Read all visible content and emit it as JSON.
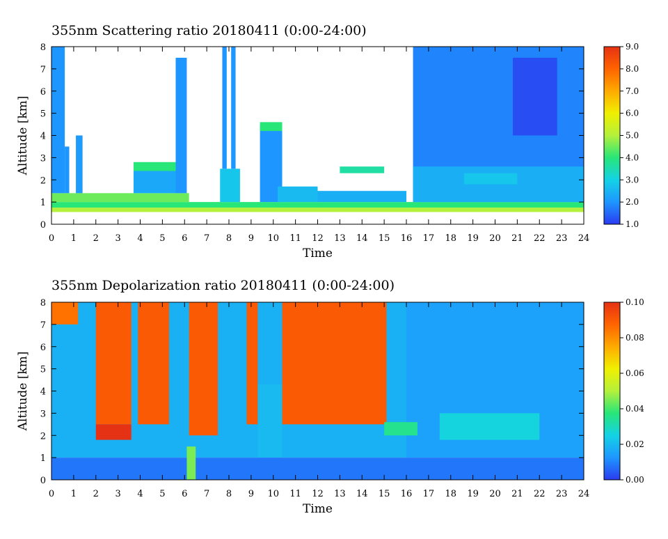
{
  "chart_data": [
    {
      "type": "heatmap",
      "title": "355nm Scattering ratio   20180411 (0:00-24:00)",
      "xlabel": "Time",
      "ylabel": "Altitude [km]",
      "xlim": [
        0,
        24
      ],
      "ylim": [
        0,
        8
      ],
      "x_ticks": [
        "0",
        "1",
        "2",
        "3",
        "4",
        "5",
        "6",
        "7",
        "8",
        "9",
        "10",
        "11",
        "12",
        "13",
        "14",
        "15",
        "16",
        "17",
        "18",
        "19",
        "20",
        "21",
        "22",
        "23",
        "24"
      ],
      "y_ticks": [
        "0",
        "1",
        "2",
        "3",
        "4",
        "5",
        "6",
        "7",
        "8"
      ],
      "colorbar": {
        "range": [
          1.0,
          9.0
        ],
        "ticks": [
          "1.0",
          "2.0",
          "3.0",
          "4.0",
          "5.0",
          "6.0",
          "7.0",
          "8.0",
          "9.0"
        ],
        "colors": [
          "#2a3cf0",
          "#1e96ff",
          "#14d2e6",
          "#28e678",
          "#b4f03c",
          "#f0f000",
          "#ffaa00",
          "#ff6400",
          "#e63214"
        ]
      },
      "regions": [
        {
          "x": [
            0.0,
            24.0
          ],
          "y": [
            0.55,
            0.75
          ],
          "value": 5.0
        },
        {
          "x": [
            0.0,
            24.0
          ],
          "y": [
            0.75,
            1.0
          ],
          "value": 4.0
        },
        {
          "x": [
            0.0,
            6.2
          ],
          "y": [
            1.0,
            1.4
          ],
          "value": 4.5
        },
        {
          "x": [
            0.0,
            0.6
          ],
          "y": [
            1.4,
            8.0
          ],
          "value": 2.0
        },
        {
          "x": [
            0.6,
            0.8
          ],
          "y": [
            1.4,
            3.5
          ],
          "value": 2.0
        },
        {
          "x": [
            1.1,
            1.4
          ],
          "y": [
            1.4,
            4.0
          ],
          "value": 2.1
        },
        {
          "x": [
            3.7,
            5.6
          ],
          "y": [
            1.4,
            2.4
          ],
          "value": 2.3
        },
        {
          "x": [
            3.7,
            5.6
          ],
          "y": [
            2.4,
            2.8
          ],
          "value": 4.0
        },
        {
          "x": [
            5.6,
            6.1
          ],
          "y": [
            1.4,
            7.5
          ],
          "value": 2.0
        },
        {
          "x": [
            7.6,
            8.5
          ],
          "y": [
            1.0,
            2.5
          ],
          "value": 2.8
        },
        {
          "x": [
            7.7,
            7.9
          ],
          "y": [
            2.5,
            8.0
          ],
          "value": 2.0
        },
        {
          "x": [
            8.1,
            8.3
          ],
          "y": [
            2.5,
            8.0
          ],
          "value": 2.0
        },
        {
          "x": [
            9.4,
            10.4
          ],
          "y": [
            1.0,
            4.5
          ],
          "value": 2.0
        },
        {
          "x": [
            9.4,
            10.4
          ],
          "y": [
            4.2,
            4.6
          ],
          "value": 4.0
        },
        {
          "x": [
            10.2,
            12.0
          ],
          "y": [
            1.0,
            1.7
          ],
          "value": 2.6
        },
        {
          "x": [
            12.0,
            16.0
          ],
          "y": [
            1.0,
            1.5
          ],
          "value": 2.4
        },
        {
          "x": [
            13.0,
            15.0
          ],
          "y": [
            2.3,
            2.6
          ],
          "value": 3.6
        },
        {
          "x": [
            16.3,
            24.0
          ],
          "y": [
            1.0,
            8.0
          ],
          "value": 1.8
        },
        {
          "x": [
            16.3,
            24.0
          ],
          "y": [
            1.0,
            2.6
          ],
          "value": 2.4
        },
        {
          "x": [
            18.6,
            21.0
          ],
          "y": [
            1.8,
            2.3
          ],
          "value": 2.8
        },
        {
          "x": [
            20.8,
            22.8
          ],
          "y": [
            4.0,
            7.5
          ],
          "value": 1.2
        }
      ]
    },
    {
      "type": "heatmap",
      "title": "355nm Depolarization ratio   20180411 (0:00-24:00)",
      "xlabel": "Time",
      "ylabel": "Altitude [km]",
      "xlim": [
        0,
        24
      ],
      "ylim": [
        0,
        8
      ],
      "x_ticks": [
        "0",
        "1",
        "2",
        "3",
        "4",
        "5",
        "6",
        "7",
        "8",
        "9",
        "10",
        "11",
        "12",
        "13",
        "14",
        "15",
        "16",
        "17",
        "18",
        "19",
        "20",
        "21",
        "22",
        "23",
        "24"
      ],
      "y_ticks": [
        "0",
        "1",
        "2",
        "3",
        "4",
        "5",
        "6",
        "7",
        "8"
      ],
      "colorbar": {
        "range": [
          0.0,
          0.1
        ],
        "ticks": [
          "0.00",
          "0.02",
          "0.04",
          "0.06",
          "0.08",
          "0.10"
        ],
        "colors": [
          "#2a3cf0",
          "#1e96ff",
          "#14d2e6",
          "#28e678",
          "#b4f03c",
          "#f0f000",
          "#ffaa00",
          "#ff6400",
          "#e63214"
        ]
      },
      "regions": [
        {
          "x": [
            0.0,
            24.0
          ],
          "y": [
            1.0,
            8.0
          ],
          "value": 0.018
        },
        {
          "x": [
            16.0,
            24.0
          ],
          "y": [
            1.0,
            8.0
          ],
          "value": 0.015
        },
        {
          "x": [
            17.5,
            22.0
          ],
          "y": [
            1.8,
            3.0
          ],
          "value": 0.026
        },
        {
          "x": [
            2.0,
            3.6
          ],
          "y": [
            2.5,
            8.0
          ],
          "value": 0.09
        },
        {
          "x": [
            3.9,
            5.3
          ],
          "y": [
            2.5,
            8.0
          ],
          "value": 0.09
        },
        {
          "x": [
            6.2,
            7.5
          ],
          "y": [
            2.0,
            8.0
          ],
          "value": 0.09
        },
        {
          "x": [
            8.8,
            9.3
          ],
          "y": [
            2.5,
            8.0
          ],
          "value": 0.09
        },
        {
          "x": [
            10.4,
            15.1
          ],
          "y": [
            2.5,
            8.0
          ],
          "value": 0.09
        },
        {
          "x": [
            9.3,
            10.4
          ],
          "y": [
            1.0,
            4.3
          ],
          "value": 0.02
        },
        {
          "x": [
            0.0,
            1.2
          ],
          "y": [
            7.0,
            8.0
          ],
          "value": 0.085
        },
        {
          "x": [
            2.0,
            3.6
          ],
          "y": [
            1.8,
            2.5
          ],
          "value": 0.1
        },
        {
          "x": [
            15.0,
            16.5
          ],
          "y": [
            2.0,
            2.6
          ],
          "value": 0.035
        },
        {
          "x": [
            0.0,
            24.0
          ],
          "y": [
            0.0,
            1.0
          ],
          "value": 0.008
        },
        {
          "x": [
            6.1,
            6.5
          ],
          "y": [
            0.0,
            1.5
          ],
          "value": 0.045
        }
      ]
    }
  ]
}
